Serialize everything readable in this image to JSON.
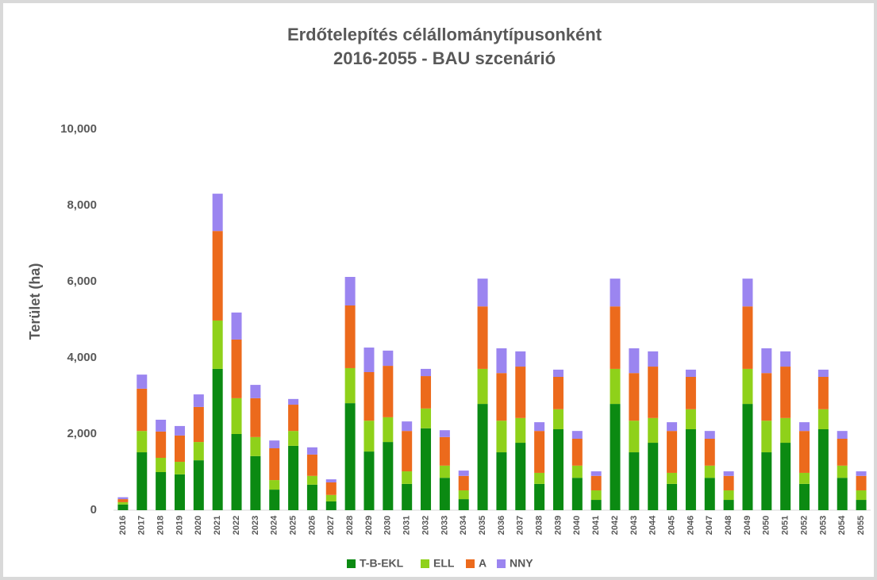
{
  "chart_data": {
    "type": "stacked_bar",
    "title": "Erdőtelepítés célállománytípusonként",
    "subtitle": "2016-2055 - BAU szcenárió",
    "y_label": "Terület (ha)",
    "categories": [
      "2016",
      "2017",
      "2018",
      "2019",
      "2020",
      "2021",
      "2022",
      "2023",
      "2024",
      "2025",
      "2026",
      "2027",
      "2028",
      "2029",
      "2030",
      "2031",
      "2032",
      "2033",
      "2034",
      "2035",
      "2036",
      "2037",
      "2038",
      "2039",
      "2040",
      "2041",
      "2042",
      "2043",
      "2044",
      "2045",
      "2046",
      "2047",
      "2048",
      "2049",
      "2050",
      "2051",
      "2052",
      "2053",
      "2054",
      "2055"
    ],
    "series": [
      {
        "name": "T-B-EKL",
        "color": "#0b8a12",
        "values": [
          150,
          1520,
          1000,
          940,
          1310,
          3710,
          2000,
          1420,
          540,
          1690,
          670,
          230,
          2810,
          1540,
          1790,
          690,
          2150,
          850,
          290,
          2790,
          1520,
          1770,
          690,
          2125,
          850,
          270,
          2790,
          1520,
          1770,
          690,
          2125,
          850,
          270,
          2790,
          1520,
          1770,
          690,
          2125,
          850,
          270
        ]
      },
      {
        "name": "ELL",
        "color": "#8fd11a",
        "values": [
          60,
          560,
          375,
          330,
          480,
          1270,
          940,
          500,
          250,
          390,
          230,
          170,
          920,
          810,
          650,
          330,
          520,
          320,
          230,
          920,
          830,
          650,
          290,
          525,
          320,
          250,
          920,
          830,
          650,
          290,
          525,
          320,
          250,
          920,
          830,
          650,
          290,
          525,
          320,
          250
        ]
      },
      {
        "name": "A",
        "color": "#ec6a1c",
        "values": [
          80,
          1110,
          690,
          690,
          920,
          2350,
          1540,
          1020,
          835,
          690,
          560,
          330,
          1645,
          1275,
          1350,
          1060,
          850,
          750,
          380,
          1640,
          1250,
          1350,
          1100,
          850,
          705,
          380,
          1640,
          1250,
          1350,
          1100,
          850,
          705,
          380,
          1640,
          1250,
          1350,
          1100,
          850,
          705,
          380
        ]
      },
      {
        "name": "NNY",
        "color": "#9b85f0",
        "values": [
          50,
          370,
          310,
          250,
          330,
          980,
          710,
          350,
          205,
          150,
          190,
          80,
          750,
          645,
          400,
          250,
          190,
          180,
          140,
          730,
          650,
          400,
          230,
          190,
          205,
          120,
          730,
          650,
          400,
          230,
          190,
          205,
          120,
          730,
          650,
          400,
          230,
          190,
          205,
          120
        ]
      }
    ],
    "ylim": [
      0,
      10000
    ],
    "yticks": [
      0,
      {
        "value": 2000,
        "label": "2,000"
      },
      {
        "value": 4000,
        "label": "4,000"
      },
      {
        "value": 6000,
        "label": "6,000"
      },
      {
        "value": 8000,
        "label": "8,000"
      },
      {
        "value": 10000,
        "label": "10,000"
      }
    ],
    "grid": false,
    "legend": "bottom"
  }
}
